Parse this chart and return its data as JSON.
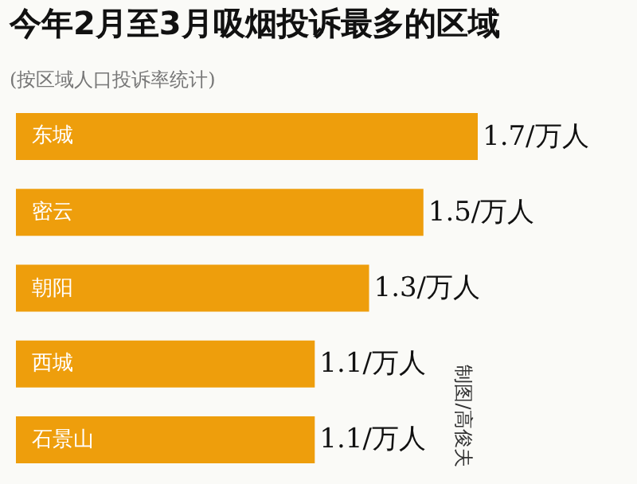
{
  "chart_data": {
    "type": "bar",
    "orientation": "horizontal",
    "title": "今年2月至3月吸烟投诉最多的区域",
    "subtitle": "(按区域人口投诉率统计)",
    "categories": [
      "东城",
      "密云",
      "朝阳",
      "西城",
      "石景山"
    ],
    "values": [
      1.7,
      1.5,
      1.3,
      1.1,
      1.1
    ],
    "value_labels": [
      "1.7/万人",
      "1.5/万人",
      "1.3/万人",
      "1.1/万人",
      "1.1/万人"
    ],
    "color": "#ee9e0c",
    "grid": false,
    "legend": false,
    "annotations": [
      "制图/高俊夫"
    ]
  }
}
